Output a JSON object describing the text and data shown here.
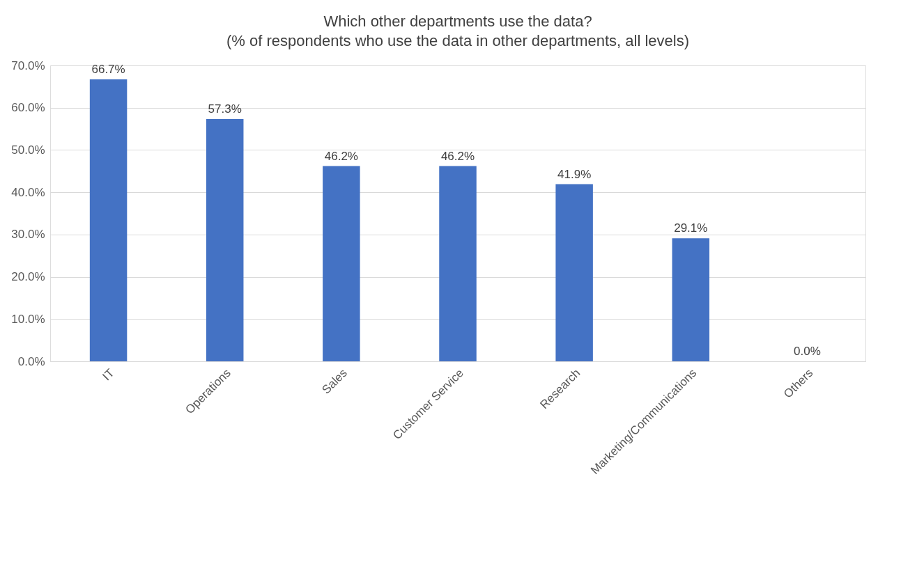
{
  "chart_data": {
    "type": "bar",
    "title": "Which other departments use the data?",
    "subtitle": "(% of respondents who use the data in other departments, all levels)",
    "categories": [
      "IT",
      "Operations",
      "Sales",
      "Customer Service",
      "Research",
      "Marketing/Communications",
      "Others"
    ],
    "values": [
      66.7,
      57.3,
      46.2,
      46.2,
      41.9,
      29.1,
      0.0
    ],
    "value_labels": [
      "66.7%",
      "57.3%",
      "46.2%",
      "46.2%",
      "41.9%",
      "29.1%",
      "0.0%"
    ],
    "color": "#4472c4",
    "ylim": [
      0,
      70
    ],
    "yticks": [
      {
        "value": 0,
        "label": "0.0%"
      },
      {
        "value": 10,
        "label": "10.0%"
      },
      {
        "value": 20,
        "label": "20.0%"
      },
      {
        "value": 30,
        "label": "30.0%"
      },
      {
        "value": 40,
        "label": "40.0%"
      },
      {
        "value": 50,
        "label": "50.0%"
      },
      {
        "value": 60,
        "label": "60.0%"
      },
      {
        "value": 70,
        "label": "70.0%"
      }
    ],
    "grid": "y"
  }
}
